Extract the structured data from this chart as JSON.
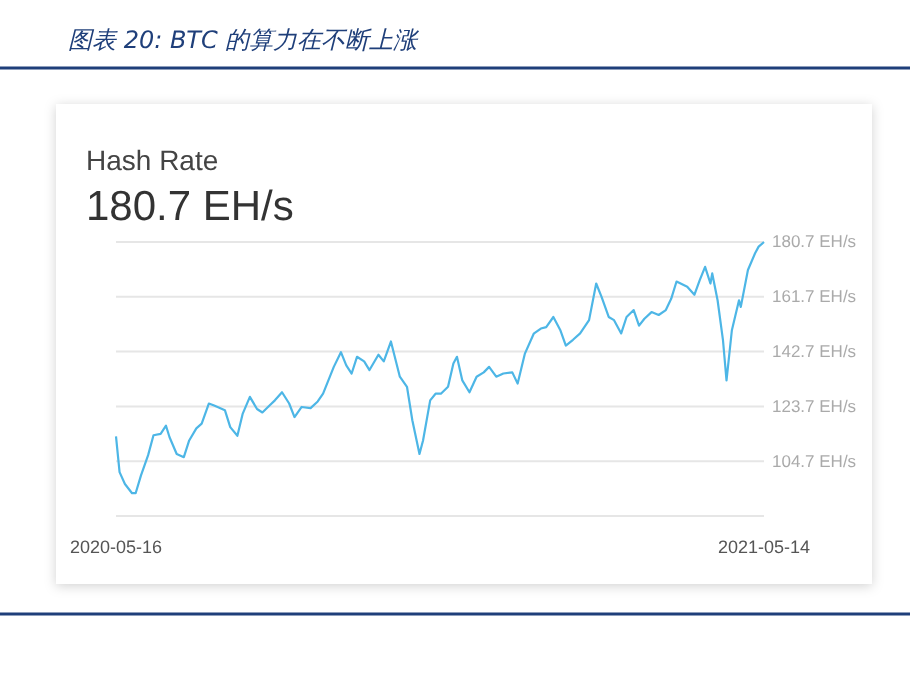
{
  "chart_data": {
    "type": "line",
    "title": "图表 20: BTC 的算力在不断上涨",
    "subtitle": "Hash Rate",
    "annotations": [
      "180.7 EH/s"
    ],
    "x": [
      "2020-05-16",
      "2020-05-18",
      "2020-05-21",
      "2020-05-25",
      "2020-05-27",
      "2020-05-30",
      "2020-06-03",
      "2020-06-06",
      "2020-06-10",
      "2020-06-13",
      "2020-06-15",
      "2020-06-19",
      "2020-06-23",
      "2020-06-26",
      "2020-06-30",
      "2020-07-03",
      "2020-07-07",
      "2020-07-10",
      "2020-07-16",
      "2020-07-19",
      "2020-07-23",
      "2020-07-26",
      "2020-07-30",
      "2020-08-03",
      "2020-08-06",
      "2020-08-10",
      "2020-08-13",
      "2020-08-17",
      "2020-08-21",
      "2020-08-24",
      "2020-08-28",
      "2020-09-02",
      "2020-09-06",
      "2020-09-09",
      "2020-09-15",
      "2020-09-19",
      "2020-09-22",
      "2020-09-25",
      "2020-09-28",
      "2020-10-02",
      "2020-10-05",
      "2020-10-10",
      "2020-10-13",
      "2020-10-17",
      "2020-10-22",
      "2020-10-26",
      "2020-10-29",
      "2020-11-02",
      "2020-11-04",
      "2020-11-08",
      "2020-11-11",
      "2020-11-14",
      "2020-11-18",
      "2020-11-21",
      "2020-11-23",
      "2020-11-26",
      "2020-11-30",
      "2020-12-04",
      "2020-12-08",
      "2020-12-11",
      "2020-12-15",
      "2020-12-19",
      "2020-12-24",
      "2020-12-27",
      "2020-12-31",
      "2021-01-05",
      "2021-01-09",
      "2021-01-12",
      "2021-01-16",
      "2021-01-20",
      "2021-01-23",
      "2021-01-27",
      "2021-01-31",
      "2021-02-05",
      "2021-02-09",
      "2021-02-12",
      "2021-02-16",
      "2021-02-19",
      "2021-02-23",
      "2021-02-26",
      "2021-03-02",
      "2021-03-05",
      "2021-03-08",
      "2021-03-12",
      "2021-03-16",
      "2021-03-20",
      "2021-03-23",
      "2021-03-26",
      "2021-04-01",
      "2021-04-05",
      "2021-04-08",
      "2021-04-11",
      "2021-04-14",
      "2021-04-15",
      "2021-04-18",
      "2021-04-21",
      "2021-04-23",
      "2021-04-26",
      "2021-04-30",
      "2021-05-01",
      "2021-05-05",
      "2021-05-09",
      "2021-05-11",
      "2021-05-14"
    ],
    "series": [
      {
        "color": "#4db6e6",
        "values": [
          113.3,
          100.9,
          96.8,
          93.6,
          93.6,
          99.8,
          106.8,
          113.7,
          114.2,
          117.0,
          113.0,
          107.2,
          106.1,
          111.9,
          116.1,
          117.7,
          124.7,
          124.0,
          122.4,
          116.5,
          113.5,
          121.2,
          127.0,
          122.8,
          121.6,
          124.0,
          125.8,
          128.6,
          124.7,
          120.0,
          123.5,
          123.1,
          125.4,
          128.1,
          137.4,
          142.5,
          137.9,
          135.1,
          140.9,
          139.3,
          136.3,
          141.6,
          139.3,
          146.2,
          134.0,
          130.5,
          118.9,
          107.2,
          111.9,
          125.8,
          128.1,
          128.1,
          130.5,
          138.6,
          140.9,
          132.7,
          128.6,
          134.0,
          135.5,
          137.4,
          134.0,
          135.1,
          135.5,
          131.6,
          141.9,
          148.9,
          150.7,
          151.2,
          154.7,
          150.0,
          144.8,
          146.8,
          149.0,
          153.6,
          166.3,
          161.7,
          154.7,
          153.6,
          149.0,
          154.7,
          157.1,
          151.7,
          154.1,
          156.4,
          155.4,
          157.1,
          161.0,
          167.0,
          165.2,
          162.4,
          167.5,
          172.1,
          166.3,
          169.8,
          160.5,
          146.8,
          132.7,
          150.1,
          160.5,
          158.2,
          171.0,
          176.8,
          179.1,
          180.7
        ]
      }
    ],
    "xlim": [
      "2020-05-16",
      "2021-05-14"
    ],
    "xticks": [
      "2020-05-16",
      "2021-05-14"
    ],
    "ylim": [
      85.7,
      180.7
    ],
    "yticks": [
      {
        "value": 85.7,
        "label": null
      },
      {
        "value": 104.7,
        "label": "104.7 EH/s"
      },
      {
        "value": 123.7,
        "label": "123.7 EH/s"
      },
      {
        "value": 142.7,
        "label": "142.7 EH/s"
      },
      {
        "value": 161.7,
        "label": "161.7 EH/s"
      },
      {
        "value": 180.7,
        "label": "180.7 EH/s"
      }
    ],
    "grid": "y",
    "marker": "none",
    "line_style": "solid"
  }
}
